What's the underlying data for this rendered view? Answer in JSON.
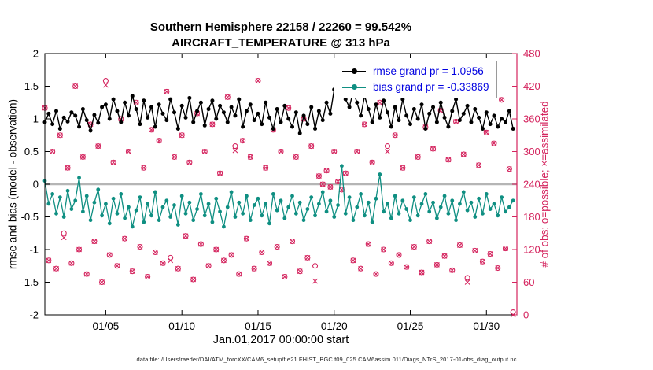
{
  "figure": {
    "footer_datafile": "data file: /Users/raeder/DAI/ATM_forcXX/CAM6_setup/f.e21.FHIST_BGC.f09_025.CAM6assim.011/Diags_NTrS_2017-01/obs_diag_output.nc"
  },
  "chart_data": {
    "type": "line",
    "title_line1": "Southern Hemisphere 22158 / 22260 = 99.542%",
    "title_line2": "AIRCRAFT_TEMPERATURE @ 313 hPa",
    "xlabel": "Jan.01,2017 00:00:00 start",
    "ylabel_left": "rmse and bias (model - observation)",
    "ylabel_right": "# of obs: o=possible; ×=assimilated",
    "legend": [
      "rmse grand pr = 1.0956",
      "bias grand pr = -0.33869"
    ],
    "stats": {
      "n_assimilated": 22158,
      "n_possible": 22260,
      "pct_assimilated": 99.542,
      "level_hPa": 313,
      "rmse_grand": 1.0956,
      "bias_grand": -0.33869
    },
    "ylim_left": [
      -2,
      2
    ],
    "ylim_right": [
      0,
      480
    ],
    "left_ticks": [
      2,
      1.5,
      1,
      0.5,
      0,
      -0.5,
      -1,
      -1.5,
      -2
    ],
    "right_ticks": [
      480,
      420,
      360,
      300,
      240,
      180,
      120,
      60,
      0
    ],
    "x_ticks": [
      {
        "day": 5,
        "label": "01/05"
      },
      {
        "day": 10,
        "label": "01/10"
      },
      {
        "day": 15,
        "label": "01/15"
      },
      {
        "day": 20,
        "label": "01/20"
      },
      {
        "day": 25,
        "label": "01/25"
      },
      {
        "day": 30,
        "label": "01/30"
      }
    ],
    "x_range": [
      1,
      32
    ],
    "x_start": 1,
    "x_step": 0.25,
    "n_points": 124,
    "colors": {
      "rmse": "#000000",
      "bias": "#0f8f82",
      "obs": "#d4245e",
      "legend_text": "#0000e0",
      "zero_line": "#b5b5b5",
      "axis": "#000000"
    },
    "series": {
      "rmse": [
        0.95,
        1.08,
        0.92,
        1.12,
        0.85,
        1.02,
        0.96,
        1.1,
        1.05,
        0.88,
        1.15,
        0.98,
        0.82,
        1.06,
        0.94,
        1.18,
        1.22,
        1.0,
        1.3,
        1.12,
        0.95,
        1.25,
        1.05,
        1.35,
        1.15,
        0.92,
        1.28,
        1.02,
        1.18,
        0.88,
        1.22,
        1.08,
        0.98,
        1.3,
        1.1,
        0.85,
        1.2,
        1.02,
        1.32,
        0.95,
        1.12,
        1.25,
        0.9,
        1.15,
        1.28,
        1.0,
        1.2,
        1.1,
        0.95,
        1.18,
        1.05,
        1.3,
        0.88,
        1.12,
        1.22,
        0.98,
        1.08,
        0.92,
        1.25,
        1.02,
        0.85,
        1.15,
        0.95,
        1.2,
        1.0,
        0.88,
        1.1,
        0.78,
        1.05,
        0.92,
        1.18,
        0.85,
        1.12,
        0.98,
        1.25,
        1.08,
        1.45,
        1.67,
        1.52,
        1.3,
        1.18,
        1.42,
        1.25,
        1.05,
        1.35,
        1.15,
        0.95,
        1.22,
        1.02,
        1.28,
        1.1,
        0.88,
        1.18,
        0.98,
        1.3,
        1.05,
        0.92,
        1.15,
        1.0,
        1.22,
        0.85,
        1.08,
        1.18,
        0.95,
        1.25,
        1.02,
        0.88,
        1.12,
        1.3,
        0.98,
        1.08,
        1.2,
        0.95,
        1.15,
        1.02,
        0.85,
        1.1,
        0.92,
        1.05,
        0.88,
        1.0,
        0.95,
        1.12,
        0.85
      ],
      "bias": [
        0.05,
        -0.3,
        -0.15,
        -0.45,
        -0.2,
        -0.5,
        -0.1,
        -0.38,
        -0.25,
        0.1,
        -0.42,
        -0.18,
        -0.55,
        -0.28,
        -0.08,
        -0.48,
        -0.3,
        -0.6,
        -0.22,
        -0.45,
        -0.15,
        -0.52,
        -0.35,
        -0.65,
        -0.4,
        -0.2,
        -0.58,
        -0.3,
        -0.48,
        -0.12,
        -0.55,
        -0.35,
        -0.25,
        -0.5,
        -0.32,
        -0.62,
        -0.18,
        -0.45,
        -0.28,
        -0.55,
        -0.38,
        -0.15,
        -0.48,
        -0.3,
        -0.58,
        -0.22,
        -0.42,
        -0.65,
        -0.35,
        -0.12,
        -0.5,
        -0.28,
        -0.45,
        -0.18,
        -0.55,
        -0.32,
        -0.22,
        -0.48,
        -0.3,
        -0.6,
        -0.15,
        -0.4,
        -0.25,
        -0.52,
        -0.35,
        -0.18,
        -0.45,
        -0.28,
        -0.55,
        -0.38,
        -0.2,
        -0.48,
        -0.3,
        -0.12,
        -0.42,
        -0.25,
        -0.5,
        -0.32,
        0.28,
        -0.45,
        -0.2,
        -0.55,
        -0.35,
        -0.15,
        -0.48,
        -0.28,
        -0.58,
        -0.22,
        0.15,
        -0.42,
        -0.3,
        -0.52,
        -0.18,
        -0.45,
        -0.25,
        -0.38,
        -0.55,
        -0.2,
        -0.48,
        -0.3,
        -0.15,
        -0.42,
        -0.28,
        -0.52,
        -0.35,
        -0.18,
        -0.45,
        -0.25,
        -0.55,
        -0.3,
        -0.12,
        -0.4,
        -0.28,
        -0.5,
        -0.22,
        -0.45,
        -0.15,
        -0.38,
        -0.3,
        -0.48,
        -0.2,
        -0.42,
        -0.35,
        -0.25
      ],
      "possible": [
        380,
        100,
        300,
        85,
        330,
        150,
        270,
        95,
        420,
        120,
        290,
        75,
        350,
        135,
        310,
        60,
        430,
        110,
        280,
        90,
        360,
        140,
        300,
        80,
        390,
        125,
        270,
        70,
        340,
        115,
        320,
        95,
        410,
        105,
        290,
        85,
        330,
        145,
        280,
        65,
        370,
        130,
        300,
        90,
        350,
        120,
        260,
        100,
        400,
        110,
        310,
        75,
        320,
        140,
        290,
        85,
        430,
        115,
        270,
        95,
        340,
        125,
        300,
        70,
        380,
        135,
        290,
        80,
        360,
        105,
        310,
        90,
        255,
        240,
        265,
        235,
        300,
        245,
        230,
        260,
        420,
        100,
        300,
        85,
        350,
        130,
        280,
        75,
        390,
        120,
        310,
        95,
        330,
        110,
        270,
        88,
        410,
        125,
        290,
        78,
        345,
        135,
        305,
        92,
        375,
        108,
        285,
        82,
        355,
        128,
        295,
        68,
        405,
        118,
        275,
        98,
        335,
        112,
        315,
        86,
        395,
        122,
        268,
        5
      ],
      "assimilated": [
        380,
        100,
        300,
        85,
        330,
        142,
        270,
        95,
        420,
        120,
        290,
        75,
        350,
        135,
        310,
        60,
        422,
        110,
        280,
        90,
        360,
        140,
        300,
        80,
        390,
        125,
        270,
        70,
        340,
        115,
        320,
        95,
        410,
        100,
        290,
        85,
        330,
        145,
        280,
        65,
        370,
        130,
        300,
        90,
        350,
        120,
        260,
        100,
        400,
        110,
        302,
        75,
        320,
        140,
        290,
        85,
        430,
        115,
        270,
        95,
        340,
        125,
        300,
        70,
        380,
        135,
        290,
        80,
        360,
        105,
        310,
        62,
        255,
        240,
        265,
        235,
        300,
        245,
        230,
        260,
        420,
        100,
        300,
        85,
        350,
        130,
        280,
        75,
        390,
        120,
        300,
        95,
        330,
        110,
        270,
        88,
        410,
        125,
        290,
        78,
        345,
        135,
        305,
        92,
        375,
        108,
        285,
        82,
        355,
        128,
        295,
        60,
        405,
        118,
        275,
        98,
        335,
        112,
        315,
        86,
        395,
        122,
        268,
        0
      ]
    }
  }
}
